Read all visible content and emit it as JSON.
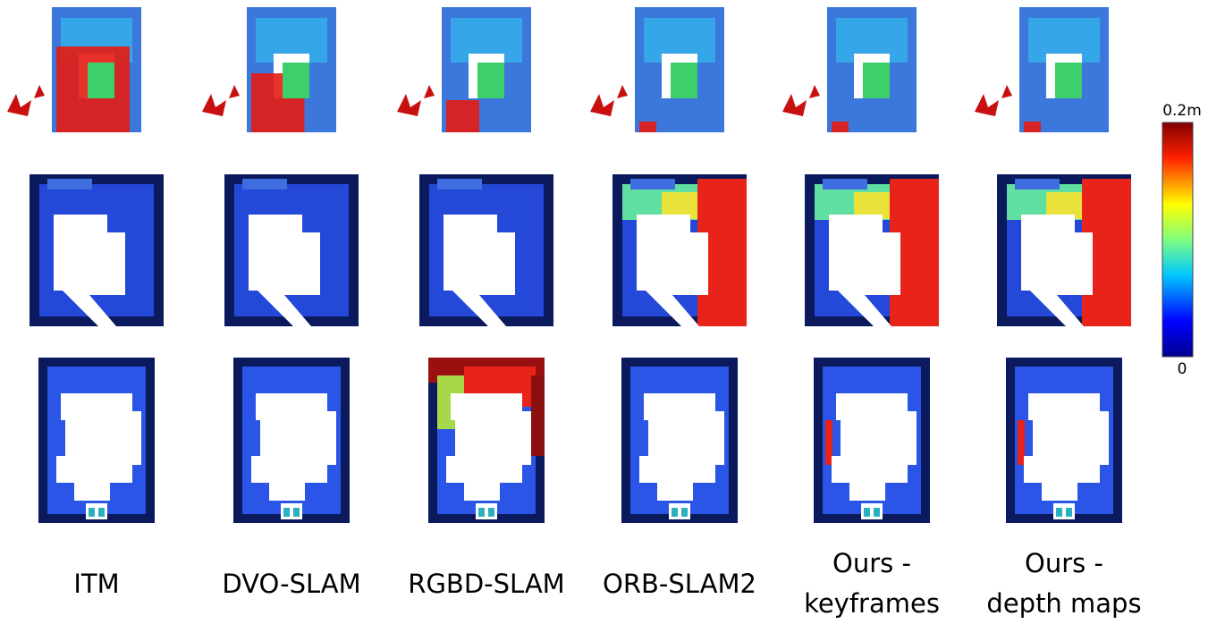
{
  "columns": [
    {
      "lines": [
        "ITM"
      ]
    },
    {
      "lines": [
        "DVO-SLAM"
      ]
    },
    {
      "lines": [
        "RGBD-SLAM"
      ]
    },
    {
      "lines": [
        "ORB-SLAM2"
      ]
    },
    {
      "lines": [
        "Ours -",
        "keyframes"
      ]
    },
    {
      "lines": [
        "Ours -",
        "depth maps"
      ]
    }
  ],
  "colorbar": {
    "max_label": "0.2m",
    "min_label": "0"
  }
}
